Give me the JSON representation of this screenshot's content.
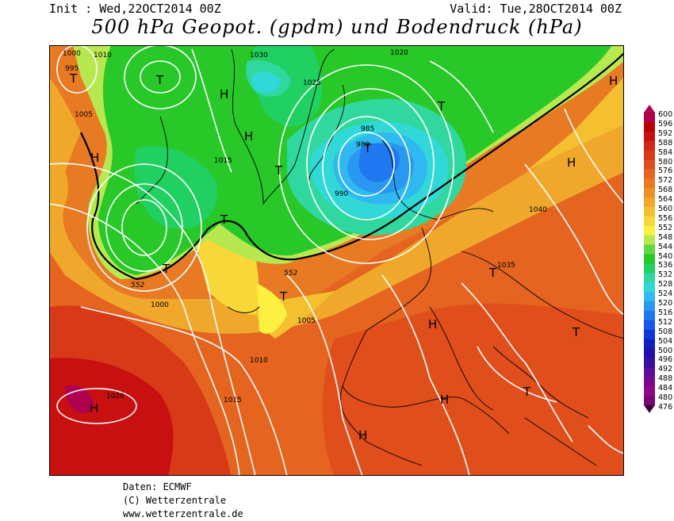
{
  "header": {
    "init": "Init : Wed,22OCT2014 00Z",
    "valid": "Valid: Tue,28OCT2014 00Z",
    "title": "500 hPa Geopot. (gpdm) und Bodendruck (hPa)"
  },
  "map": {
    "geopotential_contour_label": "552",
    "pressure_labels": [
      "1000",
      "995",
      "1010",
      "1005",
      "1030",
      "1025",
      "1020",
      "1015",
      "985",
      "980",
      "990",
      "1040",
      "1035",
      "1000",
      "1005",
      "1010",
      "1015",
      "1020"
    ],
    "low_centers": [
      "T",
      "T",
      "T",
      "T",
      "T",
      "T",
      "T",
      "T",
      "T",
      "T",
      "T"
    ],
    "high_centers": [
      "H",
      "H",
      "H",
      "H",
      "H",
      "H",
      "H",
      "H",
      "H"
    ]
  },
  "colorscale": {
    "labels": [
      "600",
      "596",
      "592",
      "588",
      "584",
      "580",
      "576",
      "572",
      "568",
      "564",
      "560",
      "556",
      "552",
      "548",
      "544",
      "540",
      "536",
      "532",
      "528",
      "524",
      "520",
      "516",
      "512",
      "508",
      "504",
      "500",
      "496",
      "492",
      "488",
      "484",
      "480",
      "476"
    ],
    "colors": [
      "#b00050",
      "#b80000",
      "#c81010",
      "#d02818",
      "#d83a18",
      "#e04e1c",
      "#e46420",
      "#e87a24",
      "#ec9028",
      "#f0a82c",
      "#f4c030",
      "#f8d838",
      "#fcf040",
      "#b8e850",
      "#60d840",
      "#28c828",
      "#20d060",
      "#30d8a0",
      "#30d8d8",
      "#30b8f0",
      "#2898f0",
      "#2078f0",
      "#1858e8",
      "#1038d8",
      "#1020c0",
      "#2010a8",
      "#3810a0",
      "#581098",
      "#780890",
      "#900888",
      "#780870",
      "#400040"
    ]
  },
  "credits": {
    "line1": "Daten: ECMWF",
    "line2": "(C) Wetterzentrale",
    "line3": "www.wetterzentrale.de"
  }
}
